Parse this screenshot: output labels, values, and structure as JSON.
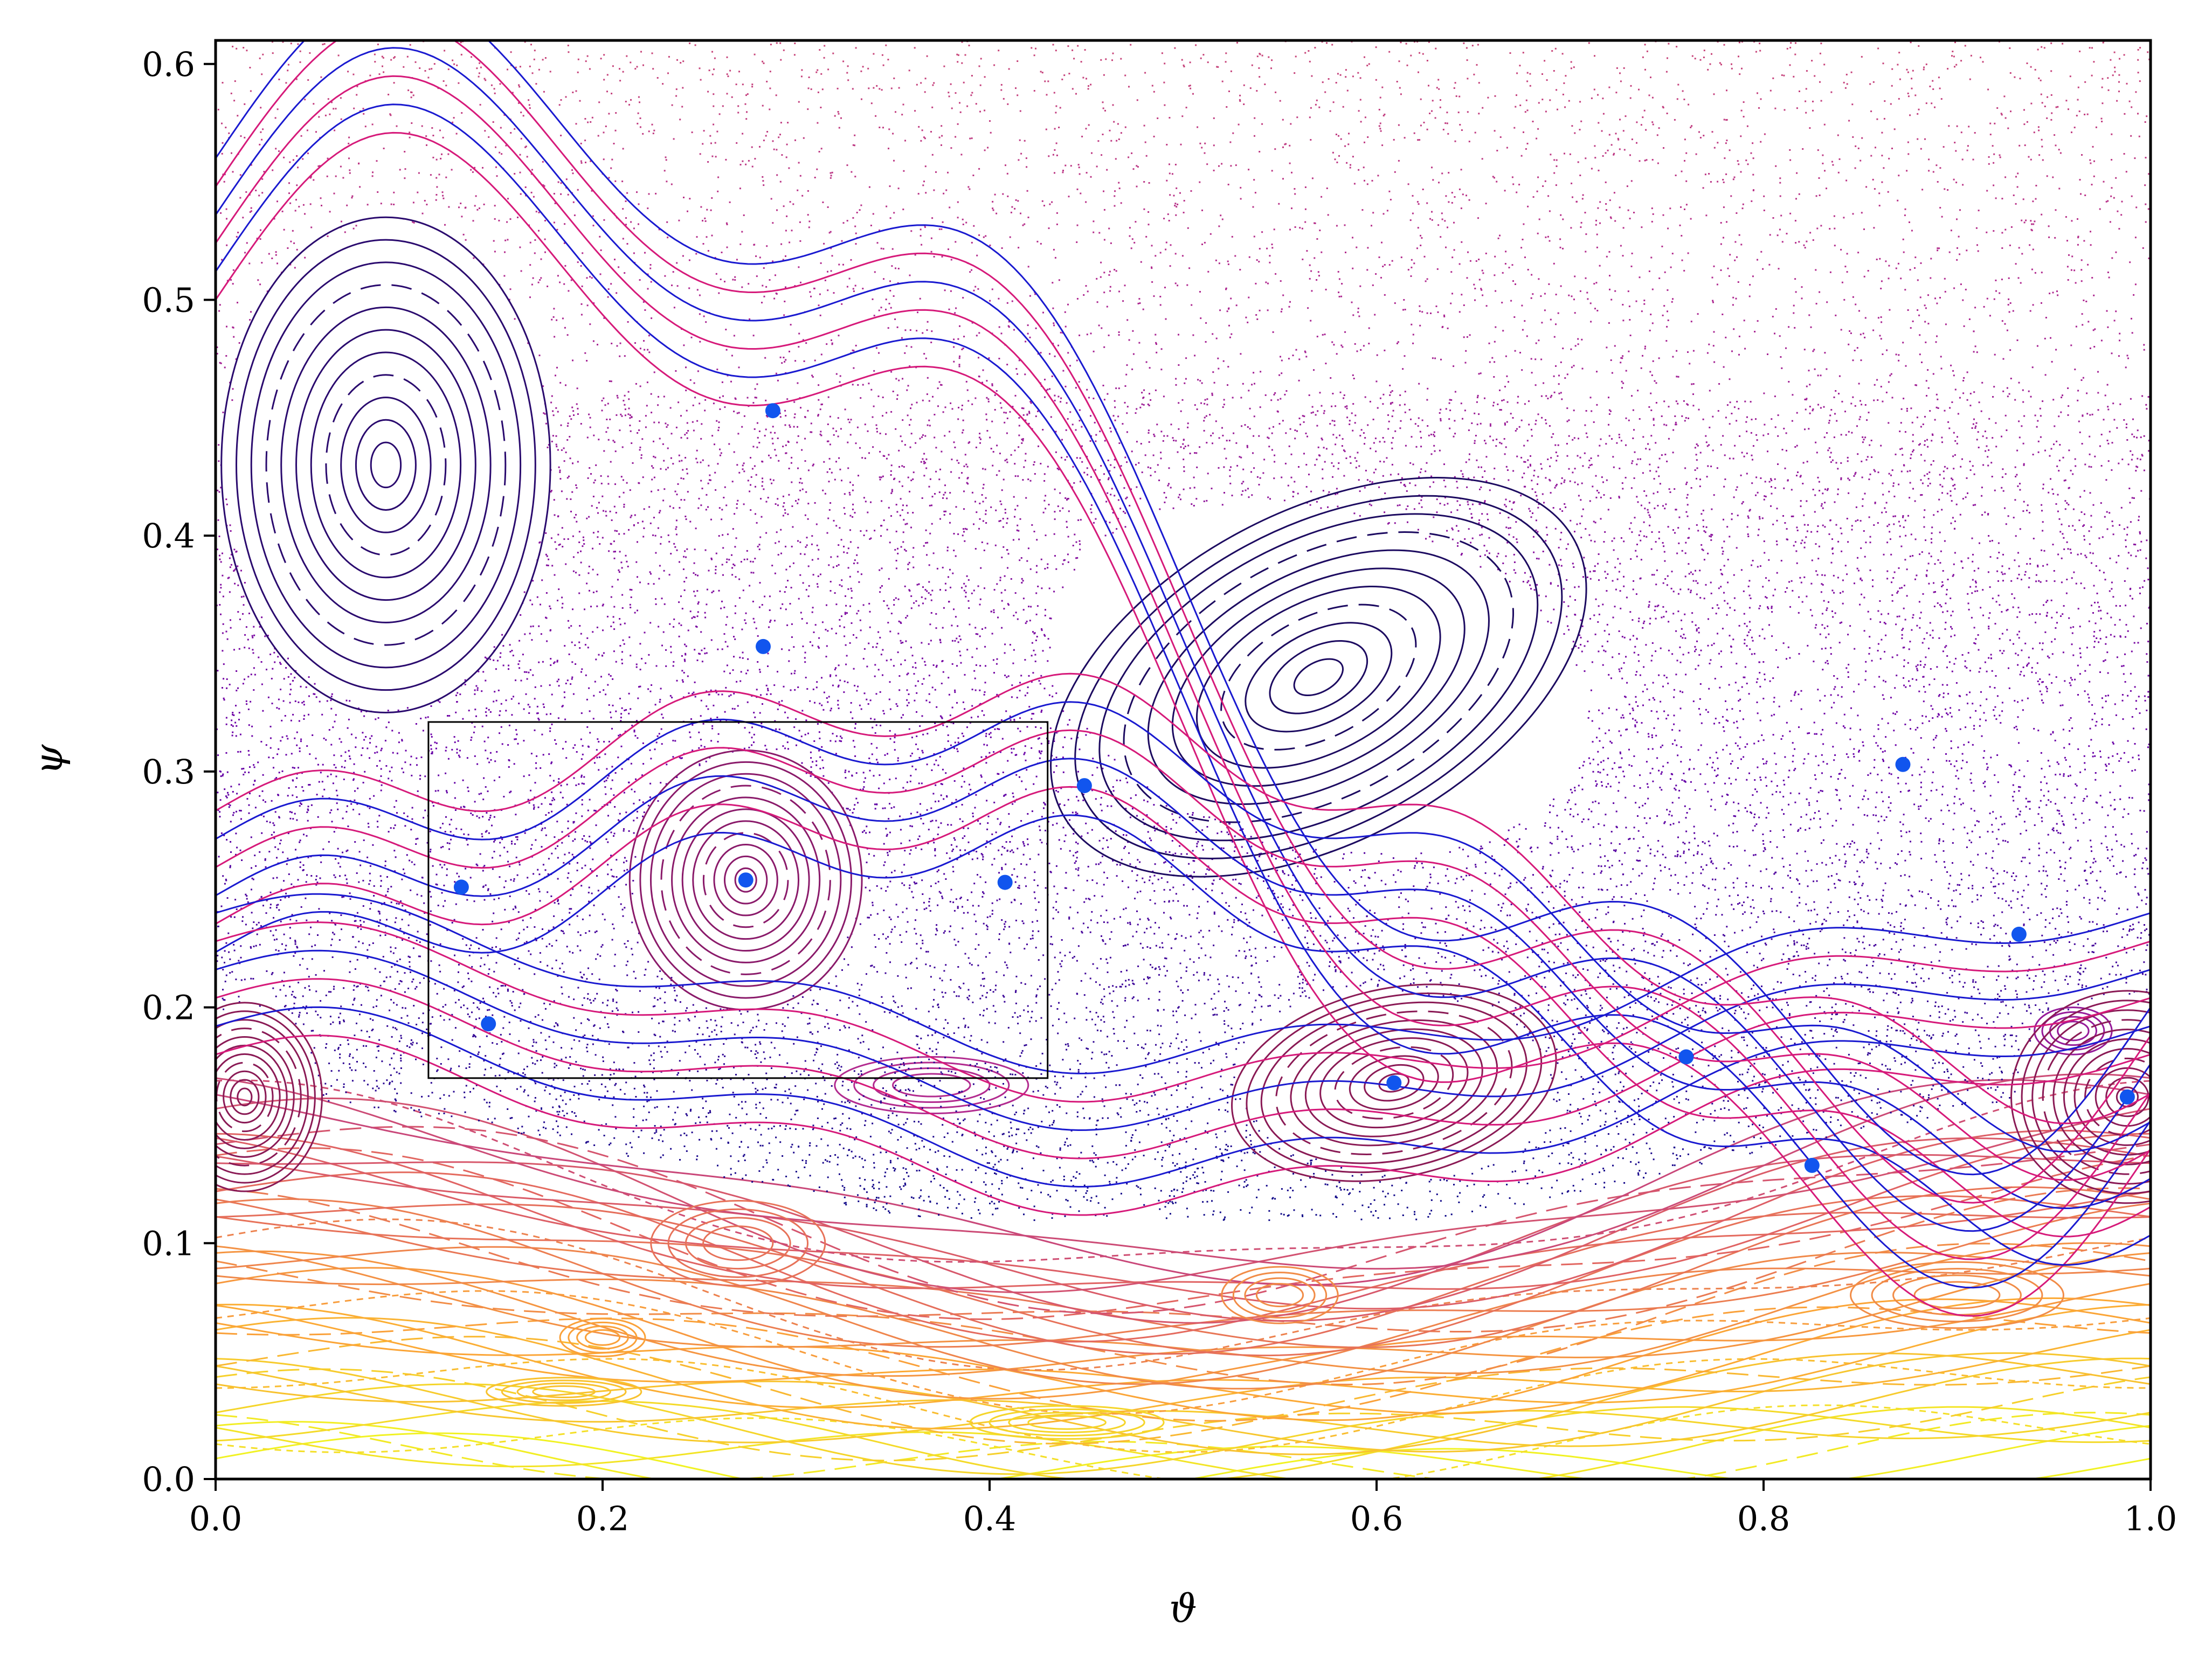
{
  "chart_data": {
    "type": "scatter",
    "title": "",
    "xlabel": "ϑ",
    "ylabel": "ψ",
    "xlim": [
      0.0,
      1.0
    ],
    "ylim": [
      0.0,
      0.61
    ],
    "xticks": [
      "0.0",
      "0.2",
      "0.4",
      "0.6",
      "0.8",
      "1.0"
    ],
    "yticks": [
      "0.0",
      "0.1",
      "0.2",
      "0.3",
      "0.4",
      "0.5",
      "0.6"
    ],
    "grid": false,
    "legend": "none",
    "colormap": [
      "#f0f921",
      "#fca636",
      "#e16462",
      "#b12a90",
      "#6a00a8",
      "#0d0887"
    ],
    "manifold_colors": {
      "unstable": "#1a1ad0",
      "stable": "#d61a7a"
    },
    "marker_color": "#1155ee",
    "periodic_points": [
      {
        "x": 0.288,
        "y": 0.453
      },
      {
        "x": 0.283,
        "y": 0.353
      },
      {
        "x": 0.449,
        "y": 0.294
      },
      {
        "x": 0.127,
        "y": 0.251
      },
      {
        "x": 0.274,
        "y": 0.254
      },
      {
        "x": 0.408,
        "y": 0.253
      },
      {
        "x": 0.141,
        "y": 0.193
      },
      {
        "x": 0.609,
        "y": 0.168
      },
      {
        "x": 0.76,
        "y": 0.179
      },
      {
        "x": 0.825,
        "y": 0.133
      },
      {
        "x": 0.872,
        "y": 0.303
      },
      {
        "x": 0.932,
        "y": 0.231
      },
      {
        "x": 0.988,
        "y": 0.162
      }
    ],
    "elliptic_islands": [
      {
        "cx": 0.088,
        "cy": 0.43,
        "rx": 0.085,
        "ry": 0.105,
        "rot": 0,
        "tone": "#2a0a6e"
      },
      {
        "cx": 0.57,
        "cy": 0.34,
        "rx": 0.15,
        "ry": 0.07,
        "rot": -28,
        "tone": "#1c0a60"
      },
      {
        "cx": 0.274,
        "cy": 0.254,
        "rx": 0.06,
        "ry": 0.055,
        "rot": 0,
        "tone": "#8a1a6a"
      },
      {
        "cx": 0.609,
        "cy": 0.168,
        "rx": 0.085,
        "ry": 0.04,
        "rot": -12,
        "tone": "#8a1a55"
      },
      {
        "cx": 0.988,
        "cy": 0.162,
        "rx": 0.06,
        "ry": 0.045,
        "rot": 0,
        "tone": "#8a1a55"
      },
      {
        "cx": 0.015,
        "cy": 0.162,
        "rx": 0.04,
        "ry": 0.04,
        "rot": 0,
        "tone": "#8a1a55"
      }
    ],
    "zoom_box": {
      "x0": 0.11,
      "x1": 0.43,
      "y0": 0.17,
      "y1": 0.321
    }
  }
}
